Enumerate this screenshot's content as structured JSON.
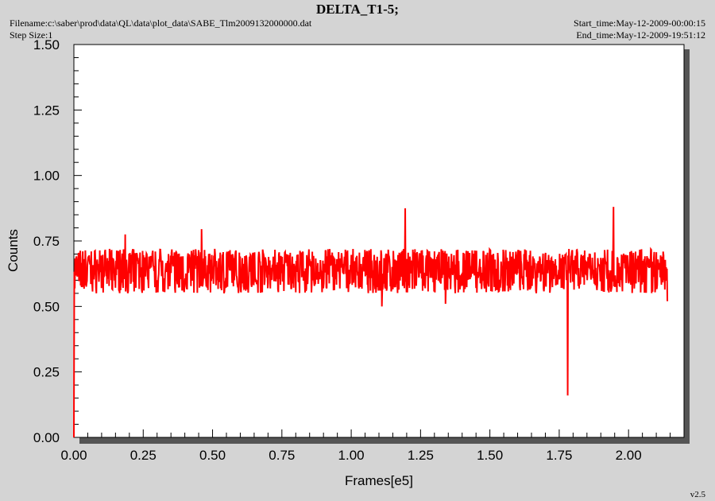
{
  "header": {
    "title": "DELTA_T1-5;",
    "filename": "Filename:c:\\saber\\prod\\data\\QL\\data\\plot_data\\SABE_Tlm2009132000000.dat",
    "step_size": "Step Size:1",
    "start_time": "Start_time:May-12-2009-00:00:15",
    "end_time": "End_time:May-12-2009-19:51:12"
  },
  "footer": {
    "version": "v2.5"
  },
  "colors": {
    "series": "#ff0000",
    "plot_bg": "#ffffff",
    "page_bg": "#d4d4d4",
    "shadow": "#555555"
  },
  "chart_data": {
    "type": "line",
    "title": "DELTA_T1-5;",
    "xlabel": "Frames[e5]",
    "ylabel": "Counts",
    "xlim": [
      0.0,
      2.2
    ],
    "ylim": [
      0.0,
      1.5
    ],
    "xticks": [
      "0.00",
      "0.25",
      "0.50",
      "0.75",
      "1.00",
      "1.25",
      "1.50",
      "1.75",
      "2.00"
    ],
    "yticks": [
      "0.00",
      "0.25",
      "0.50",
      "0.75",
      "1.00",
      "1.25",
      "1.50"
    ],
    "grid": false,
    "series": [
      {
        "color": "#ff0000",
        "x_range": [
          0.0,
          2.14
        ],
        "baseline": 0.64,
        "noise_band": [
          0.55,
          0.72
        ],
        "spikes": [
          {
            "x": 0.0,
            "y": 0.0
          },
          {
            "x": 0.185,
            "y": 0.775
          },
          {
            "x": 0.46,
            "y": 0.795
          },
          {
            "x": 1.11,
            "y": 0.5
          },
          {
            "x": 1.195,
            "y": 0.875
          },
          {
            "x": 1.34,
            "y": 0.51
          },
          {
            "x": 1.78,
            "y": 0.16
          },
          {
            "x": 1.945,
            "y": 0.88
          },
          {
            "x": 2.14,
            "y": 0.52
          }
        ]
      }
    ]
  }
}
